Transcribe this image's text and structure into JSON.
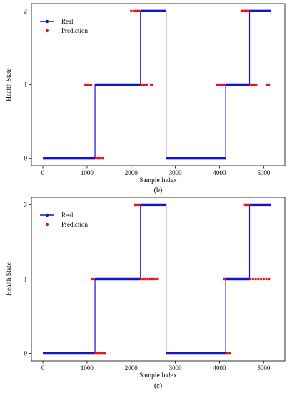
{
  "chart_data": [
    {
      "type": "line",
      "caption": "(b)",
      "xlabel": "Sample Index",
      "ylabel": "Health State",
      "xlim": [
        -260,
        5480
      ],
      "ylim": [
        -0.1,
        2.1
      ],
      "xticks": [
        0,
        1000,
        2000,
        3000,
        4000,
        5000
      ],
      "yticks": [
        0,
        1,
        2
      ],
      "legend": {
        "placement": "top-left",
        "entries": [
          "Real",
          "Prediction"
        ]
      },
      "colors": {
        "real": "#1515c8",
        "prediction": "#e8141c"
      },
      "series": [
        {
          "name": "Real",
          "style": "step",
          "points": [
            [
              0,
              0
            ],
            [
              1180,
              0
            ],
            [
              1180,
              1
            ],
            [
              2210,
              1
            ],
            [
              2210,
              2
            ],
            [
              2790,
              2
            ],
            [
              2790,
              0
            ],
            [
              4140,
              0
            ],
            [
              4140,
              1
            ],
            [
              4680,
              1
            ],
            [
              4680,
              2
            ],
            [
              5170,
              2
            ]
          ]
        },
        {
          "name": "Prediction",
          "style": "scatter",
          "points": [
            [
              960,
              1
            ],
            [
              1000,
              1
            ],
            [
              1040,
              1
            ],
            [
              1090,
              1
            ],
            [
              1200,
              0
            ],
            [
              1240,
              0
            ],
            [
              1280,
              0
            ],
            [
              1320,
              0
            ],
            [
              1360,
              0
            ],
            [
              2220,
              1
            ],
            [
              2250,
              1
            ],
            [
              2290,
              1
            ],
            [
              2330,
              1
            ],
            [
              2350,
              1
            ],
            [
              2450,
              1
            ],
            [
              2480,
              1
            ],
            [
              2000,
              2
            ],
            [
              2060,
              2
            ],
            [
              2100,
              2
            ],
            [
              2140,
              2
            ],
            [
              2180,
              2
            ],
            [
              3950,
              1
            ],
            [
              3990,
              1
            ],
            [
              4030,
              1
            ],
            [
              4070,
              1
            ],
            [
              4110,
              1
            ],
            [
              4700,
              1
            ],
            [
              4740,
              1
            ],
            [
              4790,
              1
            ],
            [
              4830,
              1
            ],
            [
              5080,
              1
            ],
            [
              5120,
              1
            ],
            [
              4500,
              2
            ],
            [
              4540,
              2
            ],
            [
              4580,
              2
            ],
            [
              4620,
              2
            ],
            [
              4660,
              2
            ]
          ]
        }
      ]
    },
    {
      "type": "line",
      "caption": "(c)",
      "xlabel": "Sample Index",
      "ylabel": "Health State",
      "xlim": [
        -260,
        5480
      ],
      "ylim": [
        -0.1,
        2.1
      ],
      "xticks": [
        0,
        1000,
        2000,
        3000,
        4000,
        5000
      ],
      "yticks": [
        0,
        1,
        2
      ],
      "legend": {
        "placement": "top-left",
        "entries": [
          "Real",
          "Prediction"
        ]
      },
      "colors": {
        "real": "#1515c8",
        "prediction": "#e8141c"
      },
      "series": [
        {
          "name": "Real",
          "style": "step",
          "points": [
            [
              0,
              0
            ],
            [
              1180,
              0
            ],
            [
              1180,
              1
            ],
            [
              2210,
              1
            ],
            [
              2210,
              2
            ],
            [
              2790,
              2
            ],
            [
              2790,
              0
            ],
            [
              4140,
              0
            ],
            [
              4140,
              1
            ],
            [
              4680,
              1
            ],
            [
              4680,
              2
            ],
            [
              5170,
              2
            ]
          ]
        },
        {
          "name": "Prediction",
          "style": "scatter",
          "points": [
            [
              1120,
              1
            ],
            [
              1150,
              1
            ],
            [
              1200,
              0
            ],
            [
              1240,
              0
            ],
            [
              1280,
              0
            ],
            [
              1320,
              0
            ],
            [
              1360,
              0
            ],
            [
              1400,
              0
            ],
            [
              2220,
              1
            ],
            [
              2270,
              1
            ],
            [
              2320,
              1
            ],
            [
              2370,
              1
            ],
            [
              2420,
              1
            ],
            [
              2470,
              1
            ],
            [
              2520,
              1
            ],
            [
              2570,
              1
            ],
            [
              2600,
              1
            ],
            [
              2080,
              2
            ],
            [
              2110,
              2
            ],
            [
              2150,
              2
            ],
            [
              2180,
              2
            ],
            [
              4160,
              0
            ],
            [
              4200,
              0
            ],
            [
              4240,
              0
            ],
            [
              4100,
              1
            ],
            [
              4120,
              1
            ],
            [
              4700,
              1
            ],
            [
              4760,
              1
            ],
            [
              4820,
              1
            ],
            [
              4880,
              1
            ],
            [
              4940,
              1
            ],
            [
              5000,
              1
            ],
            [
              5060,
              1
            ],
            [
              5120,
              1
            ],
            [
              4580,
              2
            ],
            [
              4620,
              2
            ],
            [
              4660,
              2
            ]
          ]
        }
      ]
    }
  ]
}
